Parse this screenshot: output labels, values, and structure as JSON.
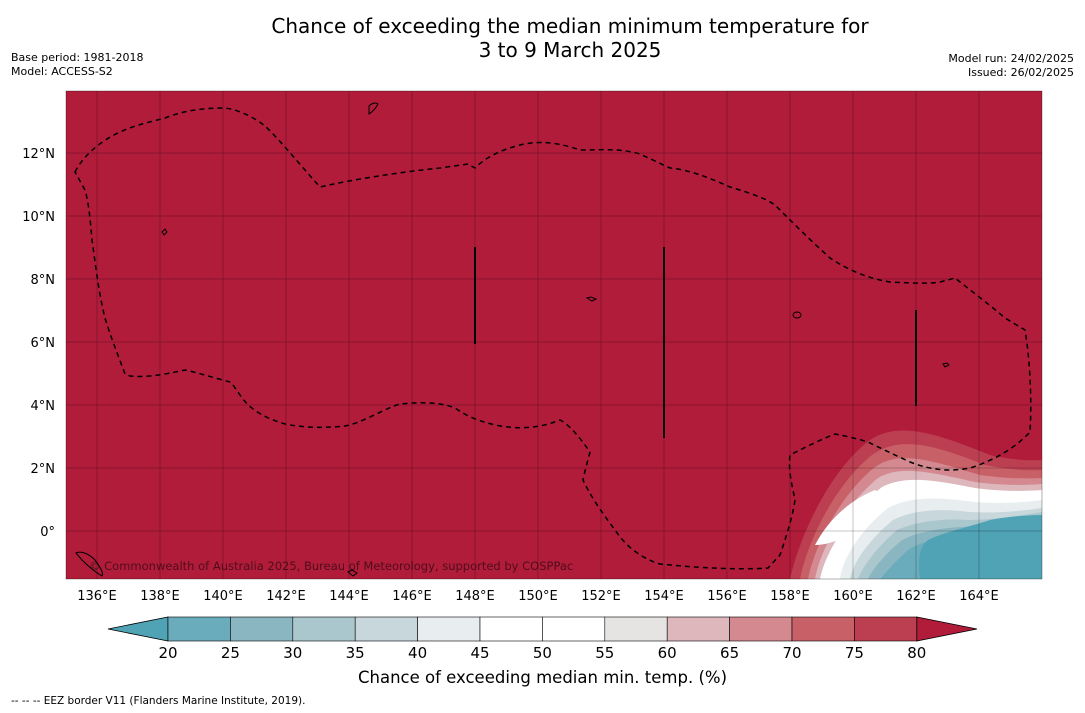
{
  "title_line1": "Chance of exceeding the median minimum temperature for",
  "title_line2": "3 to 9 March 2025",
  "base_period": "Base period: 1981-2018",
  "model": "Model: ACCESS-S2",
  "model_run": "Model run: 24/02/2025",
  "issued": "Issued: 26/02/2025",
  "copyright": "© Commonwealth of Australia 2025, Bureau of Meteorology, supported by COSPPac",
  "eez_note": "--  --  -- EEZ border V11 (Flanders Marine Institute, 2019).",
  "map": {
    "longitude_ticks": [
      "136°E",
      "138°E",
      "140°E",
      "142°E",
      "144°E",
      "146°E",
      "148°E",
      "150°E",
      "152°E",
      "154°E",
      "156°E",
      "158°E",
      "160°E",
      "162°E",
      "164°E"
    ],
    "latitude_ticks": [
      "12°N",
      "10°N",
      "8°N",
      "6°N",
      "4°N",
      "2°N",
      "0°"
    ],
    "background_color": "#b01c3a"
  },
  "colorbar": {
    "label": "Chance of exceeding median min. temp. (%)",
    "ticks": [
      "20",
      "25",
      "30",
      "35",
      "40",
      "45",
      "50",
      "55",
      "60",
      "65",
      "70",
      "75",
      "80"
    ],
    "colors": [
      "#4fa3b5",
      "#6aacbb",
      "#8ab6c2",
      "#a9c7cc",
      "#c8d7dc",
      "#e8eef0",
      "#ffffff",
      "#ffffff",
      "#e6e3e3",
      "#ddb7bc",
      "#d4888f",
      "#c86068",
      "#bc3f51",
      "#b01c3a"
    ]
  }
}
